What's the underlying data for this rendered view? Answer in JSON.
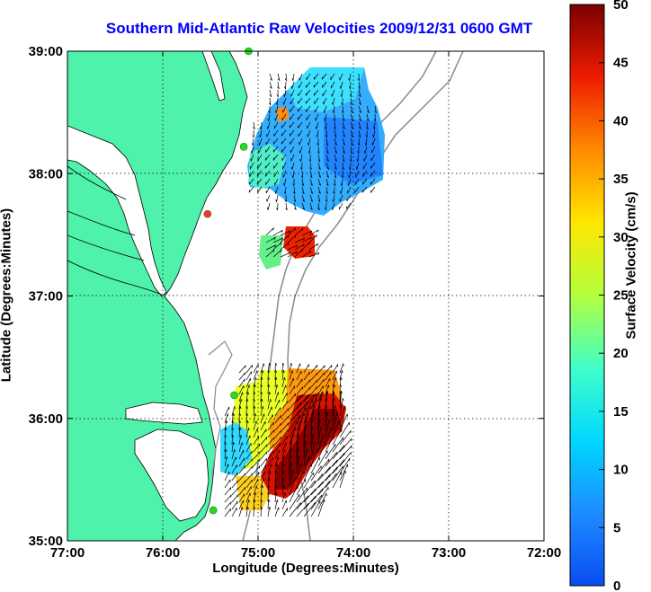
{
  "title": "Southern Mid-Atlantic Raw Velocities 2009/12/31 0600 GMT",
  "chart_data": {
    "type": "map",
    "x_axis": {
      "label": "Longitude (Degrees:Minutes)",
      "range": [
        -77,
        -72
      ],
      "ticks": [
        {
          "value": -77,
          "label": "77:00"
        },
        {
          "value": -76,
          "label": "76:00"
        },
        {
          "value": -75,
          "label": "75:00"
        },
        {
          "value": -74,
          "label": "74:00"
        },
        {
          "value": -73,
          "label": "73:00"
        },
        {
          "value": -72,
          "label": "72:00"
        }
      ]
    },
    "y_axis": {
      "label": "Latitude (Degrees:Minutes)",
      "range": [
        35,
        39
      ],
      "ticks": [
        {
          "value": 35,
          "label": "35:00"
        },
        {
          "value": 36,
          "label": "36:00"
        },
        {
          "value": 37,
          "label": "37:00"
        },
        {
          "value": 38,
          "label": "38:00"
        },
        {
          "value": 39,
          "label": "39:00"
        }
      ]
    },
    "grid": "dotted",
    "colorbar": {
      "label": "Surface Velocity (cm/s)",
      "range": [
        0,
        50
      ],
      "ticks": [
        0,
        5,
        10,
        15,
        20,
        25,
        30,
        35,
        40,
        45,
        50
      ],
      "colormap": "jet"
    },
    "colors": {
      "land": "#4ef2aa",
      "coast": "#000000",
      "isobath": "#8a8a8a",
      "station": "#22dd22",
      "station_alt": "#ff3030"
    },
    "stations": [
      {
        "lon": -75.1,
        "lat": 39.0,
        "color": "green"
      },
      {
        "lon": -75.15,
        "lat": 38.22,
        "color": "green"
      },
      {
        "lon": -75.53,
        "lat": 37.67,
        "color": "red"
      },
      {
        "lon": -75.25,
        "lat": 36.19,
        "color": "green"
      },
      {
        "lon": -75.47,
        "lat": 35.25,
        "color": "green"
      }
    ]
  }
}
